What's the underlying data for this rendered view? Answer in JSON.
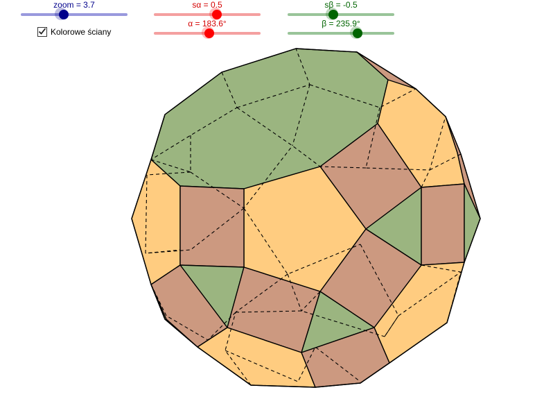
{
  "sliders": {
    "zoom": {
      "label": "zoom = 3.7",
      "value": 3.7,
      "color": "#00008b",
      "track": "#9999dd"
    },
    "s_alpha": {
      "label": "sα = 0.5",
      "value": 0.5,
      "color": "#ff0000",
      "track": "#f4a0a0"
    },
    "alpha": {
      "label": "α = 183.6°",
      "value": 183.6,
      "color": "#ff0000",
      "track": "#f4a0a0"
    },
    "s_beta": {
      "label": "sβ = -0.5",
      "value": -0.5,
      "color": "#006400",
      "track": "#99c499"
    },
    "beta": {
      "label": "β = 235.9°",
      "value": 235.9,
      "color": "#006400",
      "track": "#99c499"
    }
  },
  "checkbox": {
    "label": "Kolorowe ściany",
    "checked": true
  },
  "colors": {
    "green_face": "#9bb580",
    "orange_face": "#ffcc80",
    "brown_face": "#cc9980"
  }
}
